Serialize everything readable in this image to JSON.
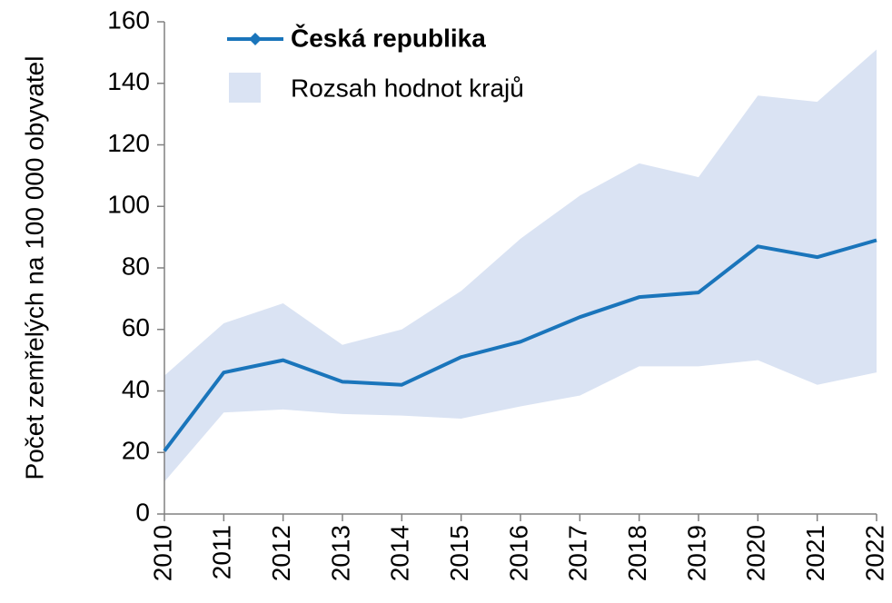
{
  "chart_data": {
    "type": "line",
    "ylabel": "Počet zemřelých na 100 000 obyvatel",
    "categories": [
      "2010",
      "2011",
      "2012",
      "2013",
      "2014",
      "2015",
      "2016",
      "2017",
      "2018",
      "2019",
      "2020",
      "2021",
      "2022"
    ],
    "series": [
      {
        "name": "Česká republika",
        "color": "#1a75bb",
        "values": [
          20.5,
          46,
          50,
          43,
          42,
          51,
          56,
          64,
          70.5,
          72,
          87,
          83.5,
          89
        ]
      }
    ],
    "band": {
      "name": "Rozsah hodnot krajů",
      "color": "#dae3f3",
      "lower": [
        10.5,
        33,
        34,
        32.5,
        32,
        31,
        35,
        38.5,
        48,
        48,
        50,
        42,
        46
      ],
      "upper": [
        45,
        62,
        68.5,
        55,
        60,
        72.5,
        89.5,
        103.5,
        114,
        109.5,
        136,
        134,
        151
      ]
    },
    "ylim": [
      0,
      160
    ],
    "yticks": [
      0,
      20,
      40,
      60,
      80,
      100,
      120,
      140,
      160
    ]
  }
}
